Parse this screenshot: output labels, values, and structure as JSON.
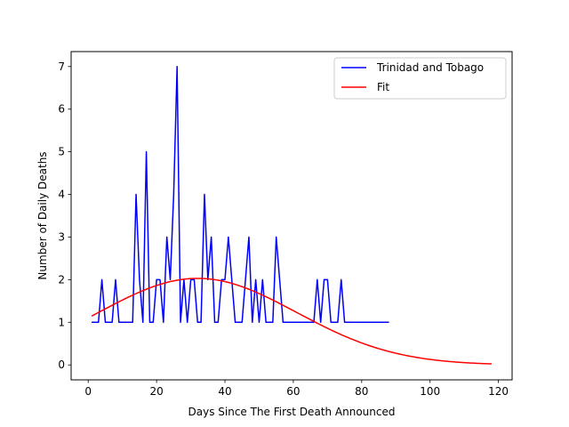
{
  "chart_data": {
    "type": "line",
    "xlabel": "Days Since The First Death Announced",
    "ylabel": "Number of Daily Deaths",
    "xlim": [
      -5,
      124
    ],
    "ylim": [
      -0.35,
      7.35
    ],
    "xticks": [
      0,
      20,
      40,
      60,
      80,
      100,
      120
    ],
    "yticks": [
      0,
      1,
      2,
      3,
      4,
      5,
      6,
      7
    ],
    "grid": false,
    "legend_position": "top-right",
    "series": [
      {
        "name": "Trinidad and Tobago",
        "color": "#0000ff",
        "x": [
          1,
          2,
          3,
          4,
          5,
          6,
          7,
          8,
          9,
          10,
          11,
          12,
          13,
          14,
          15,
          16,
          17,
          18,
          19,
          20,
          21,
          22,
          23,
          24,
          25,
          26,
          27,
          28,
          29,
          30,
          31,
          32,
          33,
          34,
          35,
          36,
          37,
          38,
          39,
          40,
          41,
          42,
          43,
          44,
          45,
          46,
          47,
          48,
          49,
          50,
          51,
          52,
          53,
          54,
          55,
          56,
          57,
          58,
          59,
          60,
          61,
          62,
          63,
          64,
          65,
          66,
          67,
          68,
          69,
          70,
          71,
          72,
          73,
          74,
          75,
          76,
          77,
          78,
          79,
          80,
          81,
          82,
          83,
          84,
          85,
          86,
          87,
          88
        ],
        "y": [
          1,
          1,
          1,
          2,
          1,
          1,
          1,
          2,
          1,
          1,
          1,
          1,
          1,
          4,
          2,
          1,
          5,
          1,
          1,
          2,
          2,
          1,
          3,
          2,
          4,
          7,
          1,
          2,
          1,
          2,
          2,
          1,
          1,
          4,
          2,
          3,
          1,
          1,
          2,
          2,
          3,
          2,
          1,
          1,
          1,
          2,
          3,
          1,
          2,
          1,
          2,
          1,
          1,
          1,
          3,
          2,
          1,
          1,
          1,
          1,
          1,
          1,
          1,
          1,
          1,
          1,
          2,
          1,
          2,
          2,
          1,
          1,
          1,
          2,
          1,
          1,
          1,
          1,
          1,
          1,
          1,
          1,
          1,
          1,
          1,
          1,
          1,
          1
        ]
      },
      {
        "name": "Fit",
        "color": "#ff0000",
        "fit": {
          "amplitude": 2.03,
          "center": 32,
          "width": 41
        },
        "x_range": [
          1,
          118
        ]
      }
    ]
  }
}
